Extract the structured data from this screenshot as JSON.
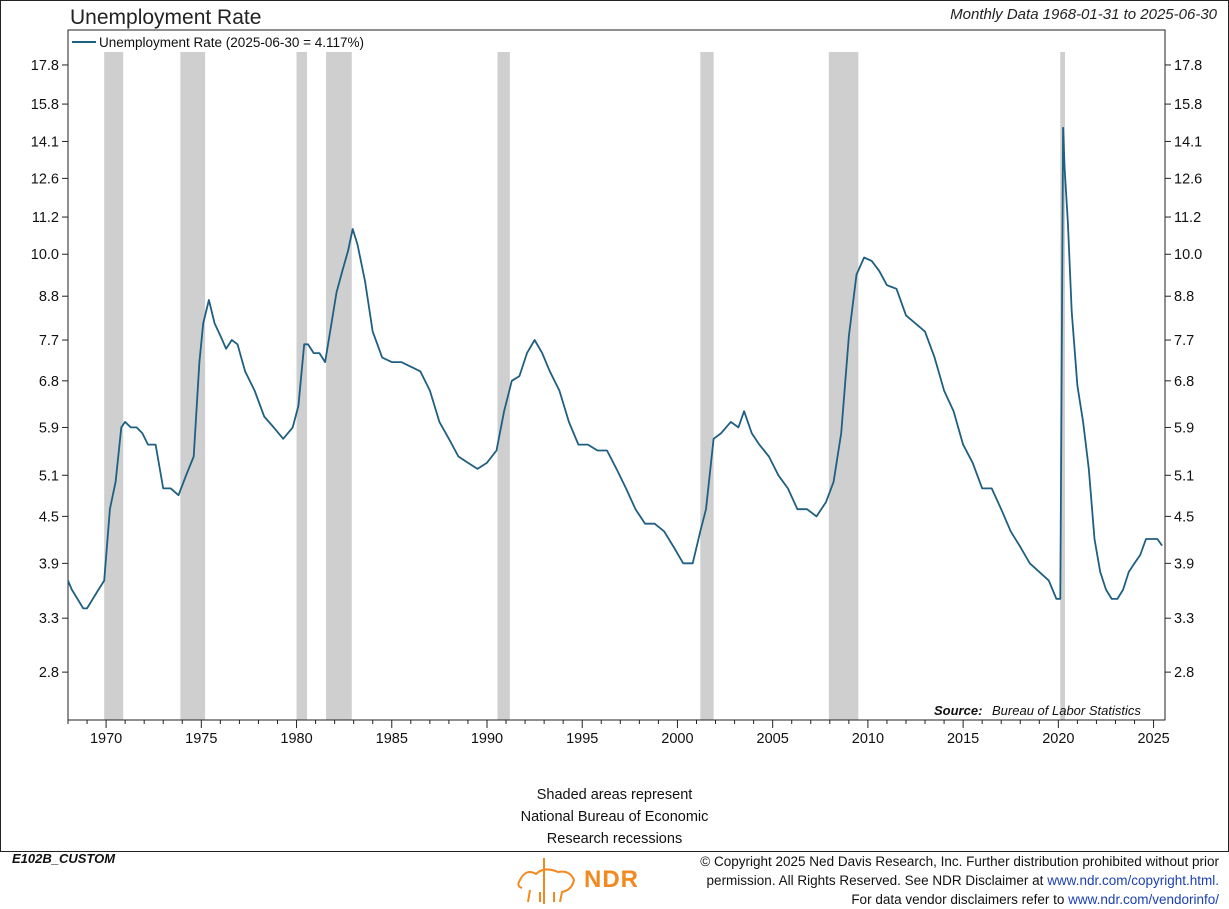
{
  "header": {
    "title": "Unemployment Rate",
    "subtitle": "Monthly Data 1968-01-31 to 2025-06-30"
  },
  "footnote": {
    "lines": [
      "Shaded areas represent",
      "National Bureau of Economic",
      "Research recessions"
    ]
  },
  "footer": {
    "chart_id": "E102B_CUSTOM",
    "logo_text": "NDR",
    "copyright_line1": "© Copyright 2025 Ned Davis Research, Inc. Further distribution prohibited without prior",
    "copyright_line2_prefix": "permission. All Rights Reserved. See NDR Disclaimer at",
    "copyright_line2_link": "www.ndr.com/copyright.html.",
    "copyright_line3_prefix": "For data vendor disclaimers refer to",
    "copyright_line3_link": "www.ndr.com/vendorinfo/"
  },
  "colors": {
    "line": "#1f5f82",
    "recession": "#cfcfcf",
    "logo": "#f28a1f"
  },
  "chart_data": {
    "type": "line",
    "title": "Unemployment Rate",
    "subtitle": "Monthly Data 1968-01-31 to 2025-06-30",
    "y_scale": "log",
    "ylim": [
      2.42,
      19.8
    ],
    "xlim": [
      1968.0,
      2025.6
    ],
    "y_ticks": [
      "17.8",
      "15.8",
      "14.1",
      "12.6",
      "11.2",
      "10.0",
      "8.8",
      "7.7",
      "6.8",
      "5.9",
      "5.1",
      "4.5",
      "3.9",
      "3.3",
      "2.8"
    ],
    "x_ticks": [
      "1970",
      "1975",
      "1980",
      "1985",
      "1990",
      "1995",
      "2000",
      "2005",
      "2010",
      "2015",
      "2020",
      "2025"
    ],
    "legend_label": "Unemployment Rate (2025-06-30 = 4.117%)",
    "legend_position": "top-left",
    "source_label": "Source:",
    "source_text": "Bureau of Labor Statistics",
    "recessions": [
      [
        1969.9,
        1970.9
      ],
      [
        1973.9,
        1975.2
      ],
      [
        1980.0,
        1980.55
      ],
      [
        1981.55,
        1982.9
      ],
      [
        1990.55,
        1991.2
      ],
      [
        2001.2,
        2001.9
      ],
      [
        2007.95,
        2009.5
      ],
      [
        2020.1,
        2020.35
      ]
    ],
    "series": [
      {
        "name": "Unemployment Rate",
        "x": [
          1968.0,
          1968.2,
          1968.5,
          1968.8,
          1969.0,
          1969.3,
          1969.6,
          1969.9,
          1970.2,
          1970.5,
          1970.8,
          1971.0,
          1971.3,
          1971.6,
          1971.9,
          1972.2,
          1972.6,
          1973.0,
          1973.4,
          1973.8,
          1974.2,
          1974.6,
          1974.9,
          1975.1,
          1975.4,
          1975.7,
          1976.0,
          1976.3,
          1976.6,
          1976.9,
          1977.3,
          1977.8,
          1978.3,
          1978.8,
          1979.3,
          1979.8,
          1980.1,
          1980.4,
          1980.6,
          1980.9,
          1981.2,
          1981.5,
          1981.8,
          1982.1,
          1982.4,
          1982.7,
          1982.95,
          1983.2,
          1983.6,
          1984.0,
          1984.5,
          1985.0,
          1985.5,
          1986.0,
          1986.5,
          1987.0,
          1987.5,
          1988.0,
          1988.5,
          1989.0,
          1989.5,
          1990.0,
          1990.5,
          1990.9,
          1991.3,
          1991.7,
          1992.1,
          1992.5,
          1992.9,
          1993.3,
          1993.8,
          1994.3,
          1994.8,
          1995.3,
          1995.8,
          1996.3,
          1996.8,
          1997.3,
          1997.8,
          1998.3,
          1998.8,
          1999.3,
          1999.8,
          2000.3,
          2000.8,
          2001.2,
          2001.5,
          2001.9,
          2002.3,
          2002.8,
          2003.2,
          2003.5,
          2003.9,
          2004.3,
          2004.8,
          2005.3,
          2005.8,
          2006.3,
          2006.8,
          2007.3,
          2007.8,
          2008.2,
          2008.6,
          2009.0,
          2009.4,
          2009.8,
          2010.2,
          2010.6,
          2011.0,
          2011.5,
          2012.0,
          2012.5,
          2013.0,
          2013.5,
          2014.0,
          2014.5,
          2015.0,
          2015.5,
          2016.0,
          2016.5,
          2017.0,
          2017.5,
          2018.0,
          2018.5,
          2019.0,
          2019.5,
          2019.9,
          2020.1,
          2020.25,
          2020.33,
          2020.5,
          2020.7,
          2021.0,
          2021.3,
          2021.6,
          2021.9,
          2022.2,
          2022.5,
          2022.8,
          2023.1,
          2023.4,
          2023.7,
          2024.0,
          2024.3,
          2024.6,
          2024.9,
          2025.2,
          2025.45
        ],
        "values": [
          3.7,
          3.6,
          3.5,
          3.4,
          3.4,
          3.5,
          3.6,
          3.7,
          4.6,
          5.0,
          5.9,
          6.0,
          5.9,
          5.9,
          5.8,
          5.6,
          5.6,
          4.9,
          4.9,
          4.8,
          5.1,
          5.4,
          7.2,
          8.1,
          8.7,
          8.1,
          7.8,
          7.5,
          7.7,
          7.6,
          7.0,
          6.6,
          6.1,
          5.9,
          5.7,
          5.9,
          6.3,
          7.6,
          7.6,
          7.4,
          7.4,
          7.2,
          8.0,
          8.9,
          9.5,
          10.1,
          10.8,
          10.3,
          9.2,
          7.9,
          7.3,
          7.2,
          7.2,
          7.1,
          7.0,
          6.6,
          6.0,
          5.7,
          5.4,
          5.3,
          5.2,
          5.3,
          5.5,
          6.2,
          6.8,
          6.9,
          7.4,
          7.7,
          7.4,
          7.0,
          6.6,
          6.0,
          5.6,
          5.6,
          5.5,
          5.5,
          5.2,
          4.9,
          4.6,
          4.4,
          4.4,
          4.3,
          4.1,
          3.9,
          3.9,
          4.3,
          4.6,
          5.7,
          5.8,
          6.0,
          5.9,
          6.2,
          5.8,
          5.6,
          5.4,
          5.1,
          4.9,
          4.6,
          4.6,
          4.5,
          4.7,
          5.0,
          5.8,
          7.8,
          9.4,
          9.9,
          9.8,
          9.5,
          9.1,
          9.0,
          8.3,
          8.1,
          7.9,
          7.3,
          6.6,
          6.2,
          5.6,
          5.3,
          4.9,
          4.9,
          4.6,
          4.3,
          4.1,
          3.9,
          3.8,
          3.7,
          3.5,
          3.5,
          14.7,
          13.0,
          11.0,
          8.4,
          6.7,
          6.0,
          5.2,
          4.2,
          3.8,
          3.6,
          3.5,
          3.5,
          3.6,
          3.8,
          3.9,
          4.0,
          4.2,
          4.2,
          4.2,
          4.117
        ]
      }
    ]
  }
}
